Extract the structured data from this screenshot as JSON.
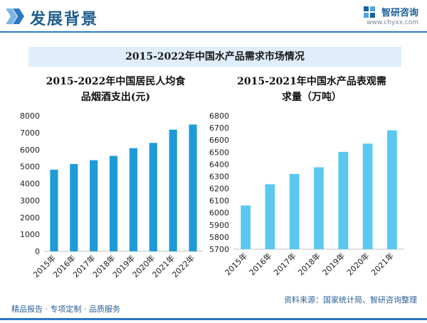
{
  "header": {
    "title": "发展背景"
  },
  "logo": {
    "name": "智研咨询",
    "url": "www.chyxx.com"
  },
  "banner": {
    "title": "2015-2022年中国水产品需求市场情况"
  },
  "chart_data": [
    {
      "type": "bar",
      "title_lines": [
        "2015-2022年中国居民人均食",
        "品烟酒支出(元)"
      ],
      "categories": [
        "2015年",
        "2016年",
        "2017年",
        "2018年",
        "2019年",
        "2020年",
        "2021年",
        "2022年"
      ],
      "values": [
        4814,
        5151,
        5374,
        5631,
        6084,
        6397,
        7178,
        7481
      ],
      "ylim": [
        0,
        8000
      ],
      "yticks": [
        "0",
        "1000",
        "2000",
        "3000",
        "4000",
        "5000",
        "6000",
        "7000",
        "8000"
      ],
      "color": "#1e9bd7",
      "grid": false
    },
    {
      "type": "bar",
      "title_lines": [
        "2015-2021年中国水产品表观需",
        "求量（万吨）"
      ],
      "categories": [
        "2015年",
        "2016年",
        "2017年",
        "2018年",
        "2019年",
        "2020年",
        "2021年"
      ],
      "values": [
        6060,
        6235,
        6320,
        6375,
        6502,
        6570,
        6680
      ],
      "ylim": [
        5700,
        6800
      ],
      "yticks": [
        "5700",
        "5800",
        "5900",
        "6000",
        "6100",
        "6200",
        "6300",
        "6400",
        "6500",
        "6600",
        "6700",
        "6800"
      ],
      "color": "#5ac8f0",
      "grid": false
    }
  ],
  "footer": {
    "left": "精品报告 · 专项定制 · 品质服务",
    "source": "资料来源：国家统计局、智研咨询整理"
  }
}
